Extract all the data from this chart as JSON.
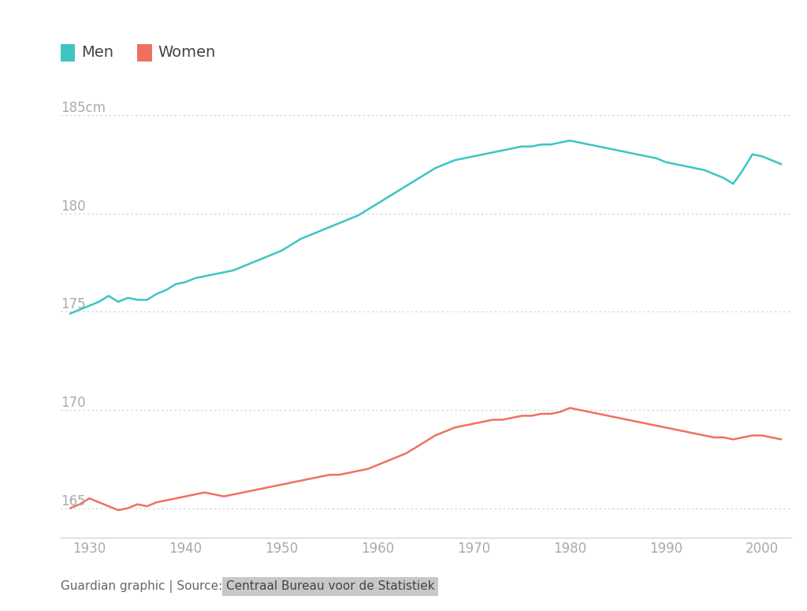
{
  "men_years": [
    1928,
    1929,
    1930,
    1931,
    1932,
    1933,
    1934,
    1935,
    1936,
    1937,
    1938,
    1939,
    1940,
    1941,
    1942,
    1943,
    1944,
    1945,
    1946,
    1947,
    1948,
    1949,
    1950,
    1951,
    1952,
    1953,
    1954,
    1955,
    1956,
    1957,
    1958,
    1959,
    1960,
    1961,
    1962,
    1963,
    1964,
    1965,
    1966,
    1967,
    1968,
    1969,
    1970,
    1971,
    1972,
    1973,
    1974,
    1975,
    1976,
    1977,
    1978,
    1979,
    1980,
    1981,
    1982,
    1983,
    1984,
    1985,
    1986,
    1987,
    1988,
    1989,
    1990,
    1991,
    1992,
    1993,
    1994,
    1995,
    1996,
    1997,
    1998,
    1999,
    2000,
    2001,
    2002
  ],
  "men_heights": [
    174.9,
    175.1,
    175.3,
    175.5,
    175.8,
    175.5,
    175.7,
    175.6,
    175.6,
    175.9,
    176.1,
    176.4,
    176.5,
    176.7,
    176.8,
    176.9,
    177.0,
    177.1,
    177.3,
    177.5,
    177.7,
    177.9,
    178.1,
    178.4,
    178.7,
    178.9,
    179.1,
    179.3,
    179.5,
    179.7,
    179.9,
    180.2,
    180.5,
    180.8,
    181.1,
    181.4,
    181.7,
    182.0,
    182.3,
    182.5,
    182.7,
    182.8,
    182.9,
    183.0,
    183.1,
    183.2,
    183.3,
    183.4,
    183.4,
    183.5,
    183.5,
    183.6,
    183.7,
    183.6,
    183.5,
    183.4,
    183.3,
    183.2,
    183.1,
    183.0,
    182.9,
    182.8,
    182.6,
    182.5,
    182.4,
    182.3,
    182.2,
    182.0,
    181.8,
    181.5,
    182.2,
    183.0,
    182.9,
    182.7,
    182.5
  ],
  "women_years": [
    1928,
    1929,
    1930,
    1931,
    1932,
    1933,
    1934,
    1935,
    1936,
    1937,
    1938,
    1939,
    1940,
    1941,
    1942,
    1943,
    1944,
    1945,
    1946,
    1947,
    1948,
    1949,
    1950,
    1951,
    1952,
    1953,
    1954,
    1955,
    1956,
    1957,
    1958,
    1959,
    1960,
    1961,
    1962,
    1963,
    1964,
    1965,
    1966,
    1967,
    1968,
    1969,
    1970,
    1971,
    1972,
    1973,
    1974,
    1975,
    1976,
    1977,
    1978,
    1979,
    1980,
    1981,
    1982,
    1983,
    1984,
    1985,
    1986,
    1987,
    1988,
    1989,
    1990,
    1991,
    1992,
    1993,
    1994,
    1995,
    1996,
    1997,
    1998,
    1999,
    2000,
    2001,
    2002
  ],
  "women_heights": [
    165.0,
    165.2,
    165.5,
    165.3,
    165.1,
    164.9,
    165.0,
    165.2,
    165.1,
    165.3,
    165.4,
    165.5,
    165.6,
    165.7,
    165.8,
    165.7,
    165.6,
    165.7,
    165.8,
    165.9,
    166.0,
    166.1,
    166.2,
    166.3,
    166.4,
    166.5,
    166.6,
    166.7,
    166.7,
    166.8,
    166.9,
    167.0,
    167.2,
    167.4,
    167.6,
    167.8,
    168.1,
    168.4,
    168.7,
    168.9,
    169.1,
    169.2,
    169.3,
    169.4,
    169.5,
    169.5,
    169.6,
    169.7,
    169.7,
    169.8,
    169.8,
    169.9,
    170.1,
    170.0,
    169.9,
    169.8,
    169.7,
    169.6,
    169.5,
    169.4,
    169.3,
    169.2,
    169.1,
    169.0,
    168.9,
    168.8,
    168.7,
    168.6,
    168.6,
    168.5,
    168.6,
    168.7,
    168.7,
    168.6,
    168.5
  ],
  "men_color": "#3dc4c4",
  "women_color": "#f07060",
  "background_color": "#ffffff",
  "grid_color": "#cccccc",
  "tick_label_color": "#aaaaaa",
  "legend_men": "Men",
  "legend_women": "Women",
  "legend_text_color": "#444444",
  "yticks": [
    165,
    170,
    175,
    180,
    185
  ],
  "ytick_labels": [
    "165",
    "170",
    "175",
    "180",
    "185cm"
  ],
  "xlim": [
    1927,
    2003
  ],
  "ylim": [
    163.5,
    186.5
  ],
  "xticks": [
    1930,
    1940,
    1950,
    1960,
    1970,
    1980,
    1990,
    2000
  ],
  "source_text": "Guardian graphic | Source: ",
  "source_highlight": "Centraal Bureau voor de Statistiek",
  "source_highlight_bg": "#c8c8c8",
  "source_text_color": "#666666",
  "source_highlight_color": "#444444"
}
